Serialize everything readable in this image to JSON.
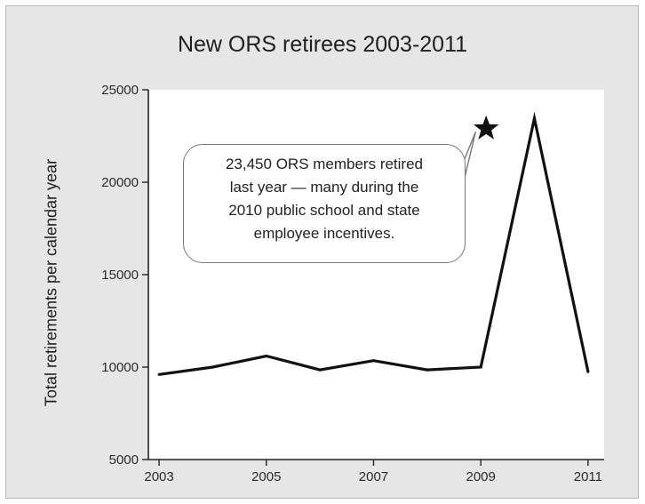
{
  "chart_data": {
    "type": "line",
    "title": "New ORS retirees 2003-2011",
    "xlabel": "",
    "ylabel": "Total retirements per calendar year",
    "x": [
      2003,
      2004,
      2005,
      2006,
      2007,
      2008,
      2009,
      2010,
      2011
    ],
    "values": [
      9600,
      10000,
      10600,
      9850,
      10350,
      9850,
      10000,
      23450,
      9750
    ],
    "xlim": [
      2002.8,
      2011.3
    ],
    "ylim": [
      5000,
      25000
    ],
    "xticks": [
      "2003",
      "2005",
      "2007",
      "2009",
      "2011"
    ],
    "yticks": [
      "5000",
      "10000",
      "15000",
      "20000",
      "25000"
    ],
    "grid": false,
    "line_color": "#111111",
    "annotation": {
      "lines": [
        "23,450 ORS members retired",
        "last year — many during the",
        "2010 public school and state",
        "employee incentives."
      ],
      "marker": "star-icon"
    }
  }
}
